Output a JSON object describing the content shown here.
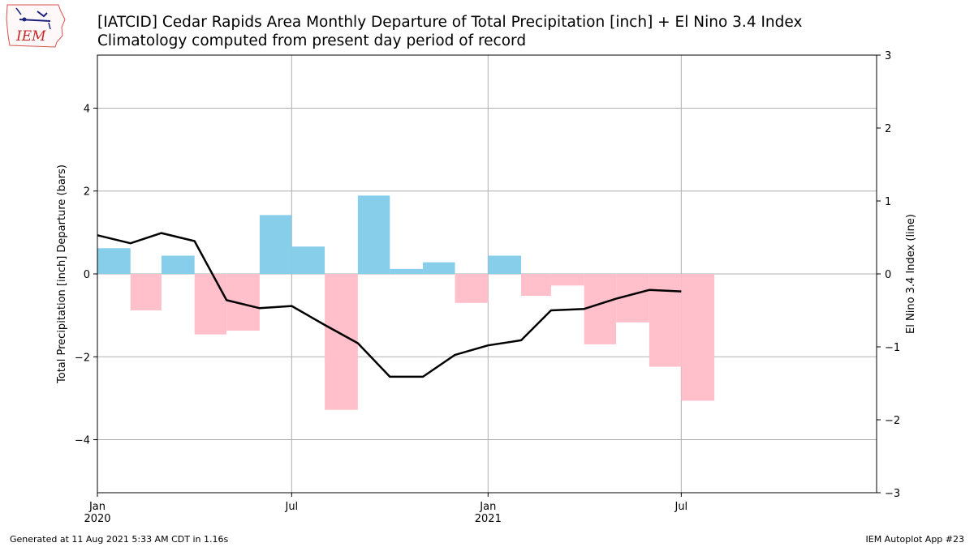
{
  "header": {
    "title_line1": "[IATCID] Cedar Rapids Area Monthly Departure of Total Precipitation [inch] + El Nino 3.4 Index",
    "title_line2": "Climatology computed from present day period of record"
  },
  "logo": {
    "text": "IEM",
    "icon": "iowa-state-outline-icon"
  },
  "footer": {
    "left": "Generated at 11 Aug 2021 5:33 AM CDT in 1.16s",
    "right": "IEM Autoplot App #23"
  },
  "colors": {
    "positive_bar": "#87ceeb",
    "negative_bar": "#ffc0cb",
    "line": "#000000",
    "grid": "#b0b0b0"
  },
  "chart_data": {
    "type": "bar",
    "x_start": "2020-01",
    "xlim": [
      "2020-01-01",
      "2021-12-31"
    ],
    "months": [
      "2020-01",
      "2020-02",
      "2020-03",
      "2020-04",
      "2020-05",
      "2020-06",
      "2020-07",
      "2020-08",
      "2020-09",
      "2020-10",
      "2020-11",
      "2020-12",
      "2021-01",
      "2021-02",
      "2021-03",
      "2021-04",
      "2021-05",
      "2021-06",
      "2021-07"
    ],
    "series": [
      {
        "axis": "left",
        "type": "bar",
        "values": [
          0.62,
          -0.88,
          0.44,
          -1.46,
          -1.37,
          1.42,
          0.66,
          -3.28,
          1.89,
          0.12,
          0.28,
          -0.7,
          0.44,
          -0.53,
          -0.28,
          -1.7,
          -1.17,
          -2.24,
          -3.06
        ]
      },
      {
        "axis": "right",
        "type": "line",
        "values": [
          0.53,
          0.42,
          0.56,
          0.45,
          -0.36,
          -0.47,
          -0.44,
          -0.7,
          -0.95,
          -1.41,
          -1.41,
          -1.11,
          -0.98,
          -0.91,
          -0.5,
          -0.48,
          -0.34,
          -0.22,
          -0.24
        ]
      }
    ],
    "ylabel_left": "Total Precipitation [inch] Departure (bars)",
    "ylabel_right": "El Nino 3.4 Index (line)",
    "ylim_left": [
      -5.28,
      5.28
    ],
    "ylim_right": [
      -3,
      3
    ],
    "yticks_left": [
      -4,
      -2,
      0,
      2,
      4
    ],
    "yticks_left_labels": [
      "−4",
      "−2",
      "0",
      "2",
      "4"
    ],
    "yticks_right": [
      -3,
      -2,
      -1,
      0,
      1,
      2,
      3
    ],
    "yticks_right_labels": [
      "−3",
      "−2",
      "−1",
      "0",
      "1",
      "2",
      "3"
    ],
    "xticks": [
      {
        "date": "2020-01-01",
        "label": "Jan",
        "sublabel": "2020"
      },
      {
        "date": "2020-07-01",
        "label": "Jul",
        "sublabel": ""
      },
      {
        "date": "2021-01-01",
        "label": "Jan",
        "sublabel": "2021"
      },
      {
        "date": "2021-07-01",
        "label": "Jul",
        "sublabel": ""
      }
    ],
    "grid": true
  }
}
